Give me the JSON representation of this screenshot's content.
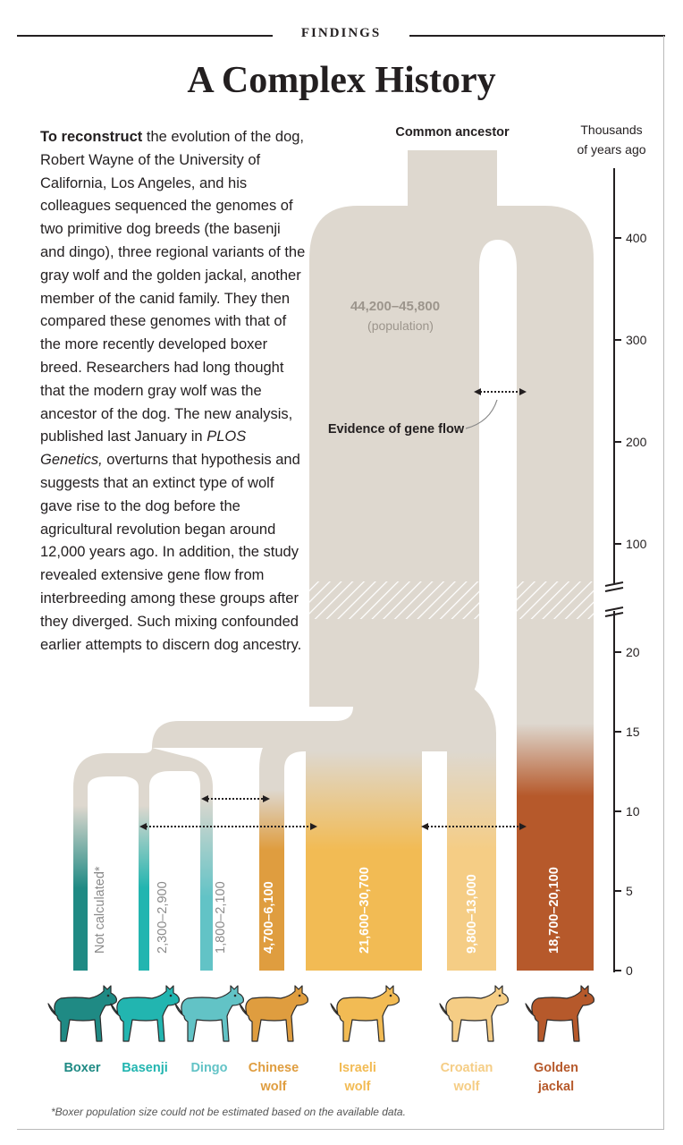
{
  "header": {
    "section": "FINDINGS",
    "title": "A Complex History"
  },
  "article": {
    "lead": "To reconstruct",
    "text_a": " the evolution of the dog, Robert Wayne of the University of California, Los Angeles, and his colleagues sequenced the genomes of two primitive dog breeds (the basenji and dingo), three regional variants of the gray wolf and the golden jackal, another member of the canid family. They then compared these genomes with that of the more recently developed boxer breed. Researchers had long thought that the modern gray wolf was the ancestor of the dog. The new analysis, published last January in ",
    "journal": "PLOS Genetics,",
    "text_b": " overturns that hypothesis and suggests that an extinct type of wolf gave rise to the dog before the agricultural revolution began around 12,000 years ago. In addition, the study revealed extensive gene flow from interbreeding among these groups after they diverged. Such mixing confounded earlier attempts to discern dog ancestry."
  },
  "diagram": {
    "common_ancestor": "Common ancestor",
    "axis_title_line1": "Thousands",
    "axis_title_line2": "of years ago",
    "upper_ticks": [
      "400",
      "300",
      "200",
      "100"
    ],
    "lower_ticks": [
      "20",
      "15",
      "10",
      "5",
      "0"
    ],
    "ancestor_population": "44,200–45,800",
    "ancestor_population_note": "(population)",
    "gene_flow_label": "Evidence of gene flow",
    "lineages": [
      {
        "name_line1": "Boxer",
        "name_line2": "",
        "population": "Not calculated*",
        "color": "#1f8a84"
      },
      {
        "name_line1": "Basenji",
        "name_line2": "",
        "population": "2,300–2,900",
        "color": "#22b5b0"
      },
      {
        "name_line1": "Dingo",
        "name_line2": "",
        "population": "1,800–2,100",
        "color": "#62c3c6"
      },
      {
        "name_line1": "Chinese",
        "name_line2": "wolf",
        "population": "4,700–6,100",
        "color": "#df9d3f"
      },
      {
        "name_line1": "Israeli",
        "name_line2": "wolf",
        "population": "21,600–30,700",
        "color": "#f2bb54"
      },
      {
        "name_line1": "Croatian",
        "name_line2": "wolf",
        "population": "9,800–13,000",
        "color": "#f5cd85"
      },
      {
        "name_line1": "Golden",
        "name_line2": "jackal",
        "population": "18,700–20,100",
        "color": "#b6592b"
      }
    ],
    "ancestor_color": "#ded8cf"
  },
  "footnote": "*Boxer population size could not be estimated based on the available data."
}
